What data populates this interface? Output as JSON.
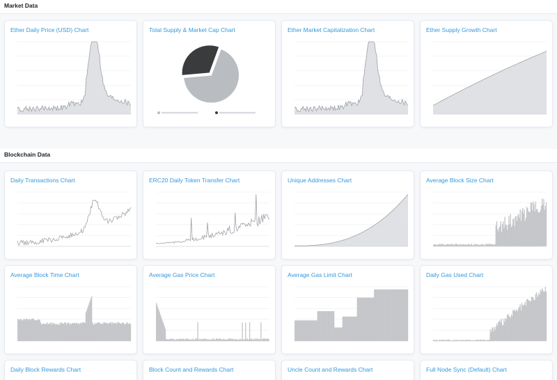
{
  "sections": [
    {
      "title": "Market Data"
    },
    {
      "title": "Blockchain Data"
    }
  ],
  "market_cards": [
    {
      "title": "Ether Daily Price (USD) Chart",
      "chart": "area-spike"
    },
    {
      "title": "Total Supply & Market Cap Chart",
      "chart": "pie"
    },
    {
      "title": "Ether Market Capitalization Chart",
      "chart": "area-spike"
    },
    {
      "title": "Ether Supply Growth Chart",
      "chart": "area-growth"
    }
  ],
  "blockchain_cards": [
    {
      "title": "Daily Transactions Chart",
      "chart": "line-spike"
    },
    {
      "title": "ERC20 Daily Token Transfer Chart",
      "chart": "line-rising"
    },
    {
      "title": "Unique Addresses Chart",
      "chart": "area-exp"
    },
    {
      "title": "Average Block Size Chart",
      "chart": "bar-rising"
    },
    {
      "title": "Average Block Time Chart",
      "chart": "bar-flat"
    },
    {
      "title": "Average Gas Price Chart",
      "chart": "bar-decay"
    },
    {
      "title": "Average Gas Limit Chart",
      "chart": "bar-step"
    },
    {
      "title": "Daily Gas Used Chart",
      "chart": "bar-late"
    },
    {
      "title": "Daily Block Rewards Chart"
    },
    {
      "title": "Block Count and Rewards Chart"
    },
    {
      "title": "Uncle Count and Rewards Chart"
    },
    {
      "title": "Full Node Sync (Default) Chart"
    }
  ],
  "pie_chart_data": {
    "type": "pie",
    "slices": [
      {
        "name": "Market Cap",
        "value": 68,
        "color": "#b9bcc0"
      },
      {
        "name": "Total Supply",
        "value": 32,
        "color": "#3a3b3d"
      }
    ]
  },
  "colors": {
    "title_link": "#3498db",
    "fill": "#c4c6c9",
    "stroke": "#9ea1a5",
    "dark": "#3a3b3d"
  }
}
